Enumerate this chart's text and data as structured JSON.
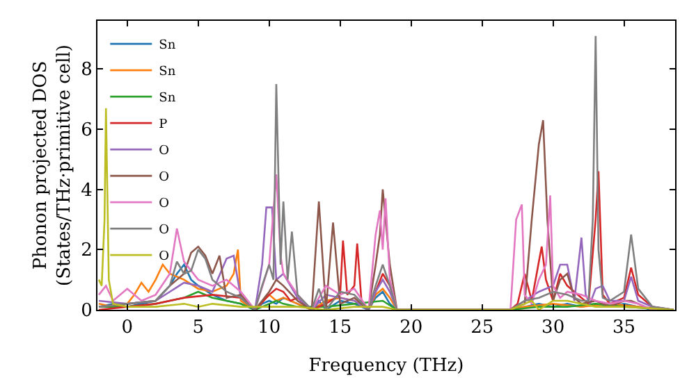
{
  "chart_data": {
    "type": "line",
    "xlabel": "Frequency (THz)",
    "ylabel": "Phonon projected DOS\n(States/THz·primitive cell)",
    "xlim": [
      -2.1,
      38.6
    ],
    "ylim": [
      0,
      9.6
    ],
    "xticks": [
      0,
      5,
      10,
      15,
      20,
      25,
      30,
      35
    ],
    "yticks": [
      0,
      2,
      4,
      6,
      8
    ],
    "legend": "top left",
    "marker": "none",
    "line_style": "solid",
    "series": [
      {
        "name": "Sn",
        "color": "#1f77b4",
        "x": [
          -2,
          -1,
          0,
          1,
          2,
          3,
          3.5,
          4,
          4.5,
          5,
          6,
          7,
          8,
          9,
          9.5,
          10,
          10.5,
          11,
          12,
          13,
          13.5,
          14,
          15,
          16,
          17,
          17.5,
          18,
          18.5,
          19,
          27,
          28,
          29,
          30,
          31,
          32,
          33,
          34,
          35,
          36,
          37,
          38.5
        ],
        "values": [
          0.1,
          0.2,
          0.1,
          0.2,
          0.3,
          0.8,
          1.2,
          1.5,
          1.0,
          0.8,
          0.5,
          0.3,
          0.2,
          0,
          0.2,
          0.3,
          0.2,
          0.4,
          0.2,
          0,
          0.3,
          0,
          0.3,
          0.2,
          0,
          0.4,
          0.6,
          0.2,
          0,
          0,
          0.1,
          0.2,
          0.1,
          0.2,
          0.1,
          0.2,
          0.1,
          0.2,
          0.1,
          0,
          0
        ]
      },
      {
        "name": "Sn",
        "color": "#ff7f0e",
        "x": [
          -2,
          -1,
          0,
          0.5,
          1,
          1.5,
          2,
          2.5,
          3,
          4,
          5,
          6,
          7,
          7.5,
          7.8,
          8,
          9,
          10,
          10.5,
          11,
          12,
          13,
          14,
          15,
          16,
          17,
          17.5,
          18,
          18.5,
          19,
          27,
          28,
          30,
          32,
          34,
          36,
          38.5
        ],
        "values": [
          0.2,
          0.1,
          0.2,
          0.5,
          0.9,
          0.6,
          1.0,
          1.5,
          1.2,
          1.0,
          0.7,
          0.6,
          0.8,
          1.2,
          2.0,
          0.3,
          0,
          0.5,
          0.3,
          0.4,
          0.2,
          0,
          0.3,
          0.4,
          0.3,
          0,
          0.5,
          0.7,
          0.4,
          0,
          0,
          0.1,
          0.2,
          0.1,
          0.2,
          0.1,
          0
        ]
      },
      {
        "name": "Sn",
        "color": "#2ca02c",
        "x": [
          -2,
          0,
          2,
          3,
          4,
          5,
          6,
          7,
          8,
          9,
          10,
          10.5,
          11,
          12,
          14,
          16,
          18,
          19,
          27,
          29,
          31,
          33,
          35,
          38.5
        ],
        "values": [
          0.1,
          0.1,
          0.2,
          0.3,
          0.4,
          0.6,
          0.4,
          0.3,
          0.2,
          0,
          0.2,
          0.3,
          0.2,
          0.1,
          0.1,
          0.2,
          0.3,
          0,
          0,
          0.1,
          0.1,
          0.2,
          0.1,
          0
        ]
      },
      {
        "name": "P",
        "color": "#d62728",
        "x": [
          -2,
          0,
          2,
          4,
          6,
          8,
          9,
          10,
          10.5,
          11,
          11.5,
          12,
          13,
          14,
          15,
          15.2,
          15.5,
          16,
          16.2,
          16.5,
          17,
          17.5,
          18,
          18.5,
          19,
          27,
          27.5,
          28,
          28.5,
          29,
          29.2,
          29.5,
          30,
          30.5,
          31,
          32,
          32.5,
          33,
          33.2,
          33.5,
          34,
          35,
          35.5,
          36,
          37,
          38.5
        ],
        "values": [
          0,
          0.1,
          0.2,
          0.4,
          0.5,
          0.4,
          0,
          0.5,
          0.7,
          0.6,
          0.3,
          0.4,
          0,
          0.2,
          0.5,
          2.3,
          0.5,
          0.8,
          2.2,
          0.3,
          0,
          0.6,
          1.2,
          0.8,
          0,
          0,
          0.2,
          1.2,
          0.3,
          1.6,
          2.1,
          1.0,
          0.3,
          1.2,
          0.8,
          0.4,
          0.2,
          3.0,
          4.6,
          0.5,
          0.2,
          0.4,
          1.4,
          0.5,
          0.1,
          0
        ]
      },
      {
        "name": "O",
        "color": "#9467bd",
        "x": [
          -2,
          0,
          2,
          3,
          4,
          5,
          6,
          7,
          7.5,
          8,
          9,
          9.5,
          9.8,
          10.2,
          10.5,
          11,
          12,
          13,
          14,
          15,
          16,
          17,
          17.5,
          18,
          18.5,
          19,
          27,
          28,
          29,
          30,
          30.5,
          31,
          31.5,
          32,
          32.3,
          32.6,
          33,
          33.5,
          34,
          35,
          35.5,
          36,
          37,
          38.5
        ],
        "values": [
          0.3,
          0.2,
          0.3,
          0.6,
          0.9,
          0.8,
          0.6,
          1.7,
          1.8,
          0.4,
          0,
          1.5,
          3.4,
          3.4,
          1.0,
          1.2,
          0.4,
          0,
          0.5,
          0.4,
          0.3,
          0,
          0.6,
          1.0,
          0.6,
          0,
          0,
          0.3,
          0.6,
          0.8,
          1.5,
          1.5,
          0.3,
          2.4,
          0.5,
          0.2,
          0.7,
          0.8,
          0.3,
          0.3,
          1.1,
          0.3,
          0.1,
          0
        ]
      },
      {
        "name": "O",
        "color": "#8c564b",
        "x": [
          -2,
          0,
          2,
          3,
          4,
          4.5,
          5,
          5.5,
          6,
          6.5,
          7,
          8,
          9,
          10,
          10.5,
          11,
          12,
          13,
          13.5,
          14,
          14.5,
          15,
          16,
          17,
          17.5,
          17.8,
          18,
          18.5,
          19,
          27,
          28,
          28.5,
          29,
          29.3,
          29.6,
          30,
          30.5,
          31,
          31.5,
          32,
          33,
          34,
          35,
          35.5,
          36,
          37,
          38.5
        ],
        "values": [
          0.1,
          0.2,
          0.3,
          0.8,
          1.2,
          1.9,
          2.1,
          1.8,
          1.2,
          1.8,
          0.4,
          0.5,
          0,
          0.6,
          1.0,
          0.8,
          0.3,
          0,
          3.6,
          0,
          2.9,
          0.2,
          0.4,
          0,
          1.5,
          2.5,
          4.0,
          1.5,
          0,
          0,
          0.2,
          3.0,
          5.5,
          6.3,
          3.0,
          0.3,
          1.0,
          1.2,
          0.4,
          0.2,
          0.3,
          0.1,
          0.3,
          0.3,
          0.2,
          0,
          0
        ]
      },
      {
        "name": "O",
        "color": "#e377c2",
        "x": [
          -2,
          -1.5,
          -1,
          0,
          1,
          2,
          3,
          3.5,
          4,
          5,
          6,
          7,
          8,
          9,
          10,
          10.5,
          10.8,
          11,
          12,
          13,
          14,
          15,
          16,
          17,
          17.5,
          17.8,
          18,
          18.2,
          18.5,
          19,
          27,
          27.4,
          27.8,
          28,
          28.5,
          29,
          29.5,
          29.8,
          30,
          30.5,
          31,
          32,
          33,
          34,
          35,
          36,
          37,
          38.5
        ],
        "values": [
          0.5,
          0.8,
          0.3,
          0.7,
          0.3,
          0.5,
          1.2,
          2.7,
          1.6,
          1.0,
          0.8,
          1.0,
          0.6,
          0,
          1.5,
          4.5,
          1.8,
          1.2,
          0.5,
          0,
          0.8,
          0.5,
          0.7,
          0,
          2.5,
          3.3,
          2.0,
          3.7,
          1.0,
          0,
          0,
          3.0,
          3.5,
          0.5,
          0.2,
          1.0,
          1.5,
          3.8,
          0.8,
          0.4,
          0.6,
          0.5,
          0.3,
          0.2,
          0.3,
          0.2,
          0,
          0
        ]
      },
      {
        "name": "O",
        "color": "#7f7f7f",
        "x": [
          -2,
          0,
          2,
          3,
          3.5,
          4,
          4.5,
          5,
          5.5,
          6,
          7,
          8,
          9,
          9.5,
          10,
          10.3,
          10.5,
          10.8,
          11,
          11.3,
          11.6,
          12,
          13,
          13.5,
          14,
          15,
          16,
          17,
          17.5,
          18,
          18.5,
          19,
          27,
          28,
          29,
          30,
          31,
          32,
          32.5,
          32.8,
          33,
          33.2,
          33.5,
          34,
          35,
          35.5,
          36,
          37,
          38.5
        ],
        "values": [
          0.1,
          0.2,
          0.3,
          0.8,
          1.6,
          1.2,
          1.3,
          2.0,
          1.7,
          1.0,
          0.6,
          0.4,
          0,
          0.8,
          1.5,
          1.0,
          7.5,
          1.5,
          3.6,
          1.0,
          2.6,
          0.5,
          0,
          0.7,
          0,
          0.6,
          0.5,
          0,
          0.8,
          1.5,
          0.8,
          0,
          0,
          0.3,
          0.4,
          0.6,
          0.5,
          0.3,
          0.3,
          3.0,
          9.1,
          2.0,
          0.4,
          0.3,
          0.6,
          2.5,
          0.7,
          0.1,
          0
        ]
      },
      {
        "name": "O",
        "color": "#bcbd22",
        "x": [
          -2,
          -1.8,
          -1.6,
          -1.5,
          -1.3,
          -1,
          0,
          2,
          4,
          5,
          6,
          8,
          10,
          12,
          14,
          16,
          18,
          19,
          27,
          28,
          28.5,
          29,
          30,
          31,
          32,
          33,
          35,
          38.5
        ],
        "values": [
          1.0,
          0.8,
          3.0,
          6.7,
          1.0,
          0.2,
          0.1,
          0.1,
          0.2,
          0.1,
          0.2,
          0.1,
          0.1,
          0.1,
          0,
          0.1,
          0.1,
          0,
          0,
          0.2,
          0.3,
          0,
          0.3,
          0.3,
          0.2,
          0.1,
          0.1,
          0
        ]
      }
    ]
  }
}
